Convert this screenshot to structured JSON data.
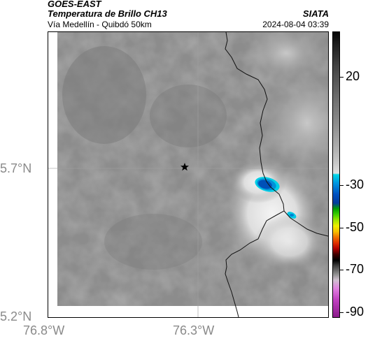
{
  "header": {
    "title1": "GOES-EAST",
    "title2": "Temperatura de Brillo CH13",
    "subtitle": "Vía Medellín - Quibdó 50km",
    "brand": "SIATA",
    "datetime": "2024-08-04 03:39"
  },
  "axes": {
    "y_labels": [
      "5.7°N",
      "5.2°N"
    ],
    "x_labels": [
      "76.8°W",
      "76.3°W"
    ]
  },
  "colorbar": {
    "labels": [
      "20",
      "-30",
      "-50",
      "-70",
      "-90"
    ]
  },
  "map": {
    "marker": "star-icon",
    "colors": {
      "background_gray": "#8a8a8a",
      "cold_core": "#0050c0",
      "cold_edge": "#00d8e8"
    }
  }
}
